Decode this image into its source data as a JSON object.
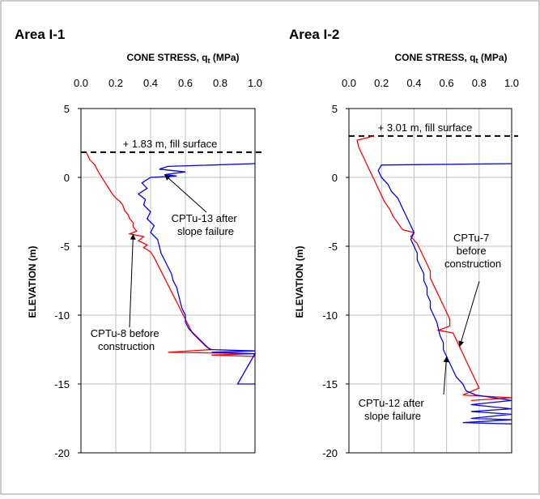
{
  "chart_data": [
    {
      "type": "line",
      "title": "Area I-1",
      "xlabel_main": "CONE STRESS,",
      "xlabel_sym": "q",
      "xlabel_sub": "t",
      "xlabel_unit": "(MPa)",
      "ylabel": "ELEVATION (m)",
      "xlim": [
        0.0,
        1.0
      ],
      "ylim": [
        -20,
        5
      ],
      "xticks": [
        "0.0",
        "0.2",
        "0.4",
        "0.6",
        "0.8",
        "1.0"
      ],
      "yticks": [
        "5",
        "0",
        "-5",
        "-10",
        "-15",
        "-20"
      ],
      "fill_line": {
        "y": 1.83,
        "label": "+ 1.83 m, fill surface"
      },
      "series": [
        {
          "name": "CPTu-8 before construction",
          "color": "#ff0000",
          "points": [
            [
              0.03,
              1.83
            ],
            [
              0.05,
              1.3
            ],
            [
              0.08,
              0.9
            ],
            [
              0.1,
              0.4
            ],
            [
              0.12,
              0.0
            ],
            [
              0.14,
              -0.4
            ],
            [
              0.16,
              -0.8
            ],
            [
              0.18,
              -1.2
            ],
            [
              0.2,
              -1.5
            ],
            [
              0.22,
              -1.7
            ],
            [
              0.24,
              -2.0
            ],
            [
              0.25,
              -2.4
            ],
            [
              0.27,
              -2.7
            ],
            [
              0.28,
              -3.0
            ],
            [
              0.3,
              -3.3
            ],
            [
              0.3,
              -3.6
            ],
            [
              0.32,
              -3.9
            ],
            [
              0.28,
              -4.1
            ],
            [
              0.36,
              -4.3
            ],
            [
              0.33,
              -4.6
            ],
            [
              0.38,
              -4.9
            ],
            [
              0.36,
              -5.1
            ],
            [
              0.4,
              -5.4
            ],
            [
              0.42,
              -5.8
            ],
            [
              0.44,
              -6.3
            ],
            [
              0.46,
              -6.8
            ],
            [
              0.48,
              -7.3
            ],
            [
              0.5,
              -7.8
            ],
            [
              0.52,
              -8.3
            ],
            [
              0.54,
              -8.8
            ],
            [
              0.56,
              -9.3
            ],
            [
              0.58,
              -9.8
            ],
            [
              0.6,
              -10.3
            ],
            [
              0.62,
              -10.8
            ],
            [
              0.64,
              -11.3
            ],
            [
              0.68,
              -11.8
            ],
            [
              0.72,
              -12.3
            ],
            [
              0.75,
              -12.5
            ],
            [
              0.5,
              -12.7
            ],
            [
              1.0,
              -12.8
            ],
            [
              0.75,
              -12.9
            ],
            [
              1.0,
              -13.0
            ]
          ]
        },
        {
          "name": "CPTu-13 after slope failure",
          "color": "#0000ff",
          "points": [
            [
              1.0,
              1.0
            ],
            [
              0.5,
              0.8
            ],
            [
              0.45,
              0.6
            ],
            [
              0.6,
              0.4
            ],
            [
              0.48,
              0.2
            ],
            [
              0.55,
              0.1
            ],
            [
              0.4,
              0.0
            ],
            [
              0.35,
              -0.4
            ],
            [
              0.38,
              -0.8
            ],
            [
              0.33,
              -1.2
            ],
            [
              0.37,
              -1.6
            ],
            [
              0.36,
              -2.0
            ],
            [
              0.4,
              -2.5
            ],
            [
              0.38,
              -3.0
            ],
            [
              0.42,
              -3.5
            ],
            [
              0.4,
              -4.0
            ],
            [
              0.44,
              -4.5
            ],
            [
              0.45,
              -5.0
            ],
            [
              0.46,
              -5.5
            ],
            [
              0.48,
              -6.0
            ],
            [
              0.5,
              -6.5
            ],
            [
              0.52,
              -7.0
            ],
            [
              0.53,
              -7.5
            ],
            [
              0.55,
              -8.0
            ],
            [
              0.56,
              -8.5
            ],
            [
              0.57,
              -9.0
            ],
            [
              0.58,
              -9.5
            ],
            [
              0.6,
              -10.0
            ],
            [
              0.6,
              -10.5
            ],
            [
              0.62,
              -11.0
            ],
            [
              0.66,
              -11.5
            ],
            [
              0.7,
              -12.0
            ],
            [
              0.74,
              -12.5
            ],
            [
              1.0,
              -12.6
            ],
            [
              0.75,
              -12.7
            ],
            [
              1.0,
              -12.8
            ],
            [
              0.9,
              -15.0
            ],
            [
              1.0,
              -15.0
            ]
          ]
        }
      ],
      "annotations": [
        {
          "lines": [
            "CPTu-13 after",
            "slope failure"
          ],
          "target": [
            0.48,
            0.2
          ]
        },
        {
          "lines": [
            "CPTu-8 before",
            "construction"
          ],
          "target": [
            0.3,
            -4.1
          ]
        }
      ]
    },
    {
      "type": "line",
      "title": "Area I-2",
      "xlabel_main": "CONE STRESS,",
      "xlabel_sym": "q",
      "xlabel_sub": "t",
      "xlabel_unit": "(MPa)",
      "ylabel": "ELEVATION (m)",
      "xlim": [
        0.0,
        1.0
      ],
      "ylim": [
        -20,
        5
      ],
      "xticks": [
        "0.0",
        "0.2",
        "0.4",
        "0.6",
        "0.8",
        "1.0"
      ],
      "yticks": [
        "5",
        "0",
        "-5",
        "-10",
        "-15",
        "-20"
      ],
      "fill_line": {
        "y": 3.01,
        "label": "+ 3.01 m, fill surface"
      },
      "series": [
        {
          "name": "CPTu-7 before construction",
          "color": "#ff0000",
          "points": [
            [
              0.15,
              3.0
            ],
            [
              0.05,
              2.7
            ],
            [
              0.06,
              2.2
            ],
            [
              0.08,
              1.7
            ],
            [
              0.1,
              1.2
            ],
            [
              0.12,
              0.7
            ],
            [
              0.14,
              0.2
            ],
            [
              0.16,
              -0.3
            ],
            [
              0.18,
              -0.8
            ],
            [
              0.2,
              -1.3
            ],
            [
              0.22,
              -1.8
            ],
            [
              0.25,
              -2.3
            ],
            [
              0.27,
              -2.8
            ],
            [
              0.3,
              -3.3
            ],
            [
              0.33,
              -3.8
            ],
            [
              0.4,
              -4.0
            ],
            [
              0.38,
              -4.3
            ],
            [
              0.42,
              -4.8
            ],
            [
              0.44,
              -5.3
            ],
            [
              0.46,
              -5.8
            ],
            [
              0.48,
              -6.3
            ],
            [
              0.5,
              -6.8
            ],
            [
              0.5,
              -7.3
            ],
            [
              0.52,
              -7.8
            ],
            [
              0.54,
              -8.3
            ],
            [
              0.56,
              -8.8
            ],
            [
              0.58,
              -9.3
            ],
            [
              0.6,
              -9.8
            ],
            [
              0.62,
              -10.3
            ],
            [
              0.62,
              -10.8
            ],
            [
              0.55,
              -11.1
            ],
            [
              0.64,
              -11.3
            ],
            [
              0.66,
              -11.8
            ],
            [
              0.68,
              -12.3
            ],
            [
              0.7,
              -12.8
            ],
            [
              0.72,
              -13.3
            ],
            [
              0.74,
              -13.8
            ],
            [
              0.76,
              -14.3
            ],
            [
              0.78,
              -14.8
            ],
            [
              0.8,
              -15.3
            ],
            [
              0.7,
              -15.8
            ],
            [
              1.0,
              -16.0
            ],
            [
              0.75,
              -16.2
            ]
          ]
        },
        {
          "name": "CPTu-12 after slope failure",
          "color": "#0000ff",
          "points": [
            [
              1.0,
              1.0
            ],
            [
              0.2,
              0.9
            ],
            [
              0.18,
              0.5
            ],
            [
              0.2,
              0.0
            ],
            [
              0.24,
              -0.5
            ],
            [
              0.26,
              -1.0
            ],
            [
              0.3,
              -1.5
            ],
            [
              0.32,
              -2.0
            ],
            [
              0.34,
              -2.5
            ],
            [
              0.36,
              -3.0
            ],
            [
              0.38,
              -3.5
            ],
            [
              0.4,
              -4.0
            ],
            [
              0.38,
              -4.5
            ],
            [
              0.4,
              -5.0
            ],
            [
              0.42,
              -5.5
            ],
            [
              0.42,
              -6.0
            ],
            [
              0.44,
              -6.5
            ],
            [
              0.46,
              -7.0
            ],
            [
              0.46,
              -7.5
            ],
            [
              0.48,
              -8.0
            ],
            [
              0.48,
              -8.5
            ],
            [
              0.5,
              -9.0
            ],
            [
              0.5,
              -9.5
            ],
            [
              0.52,
              -10.0
            ],
            [
              0.54,
              -10.5
            ],
            [
              0.55,
              -11.0
            ],
            [
              0.56,
              -11.5
            ],
            [
              0.58,
              -12.0
            ],
            [
              0.58,
              -12.5
            ],
            [
              0.6,
              -13.0
            ],
            [
              0.62,
              -13.5
            ],
            [
              0.64,
              -14.0
            ],
            [
              0.66,
              -14.5
            ],
            [
              0.7,
              -15.0
            ],
            [
              0.72,
              -15.5
            ],
            [
              0.78,
              -15.8
            ],
            [
              1.0,
              -16.2
            ],
            [
              0.75,
              -16.5
            ],
            [
              1.0,
              -16.8
            ],
            [
              0.75,
              -17.0
            ],
            [
              1.0,
              -17.2
            ],
            [
              0.75,
              -17.5
            ],
            [
              1.0,
              -17.6
            ],
            [
              0.7,
              -17.8
            ],
            [
              1.0,
              -17.9
            ]
          ]
        }
      ],
      "annotations": [
        {
          "lines": [
            "CPTu-7",
            "before",
            "construction"
          ],
          "target": [
            0.68,
            -12.3
          ]
        },
        {
          "lines": [
            "CPTu-12 after",
            "slope failure"
          ],
          "target": [
            0.6,
            -13.0
          ]
        }
      ]
    }
  ]
}
